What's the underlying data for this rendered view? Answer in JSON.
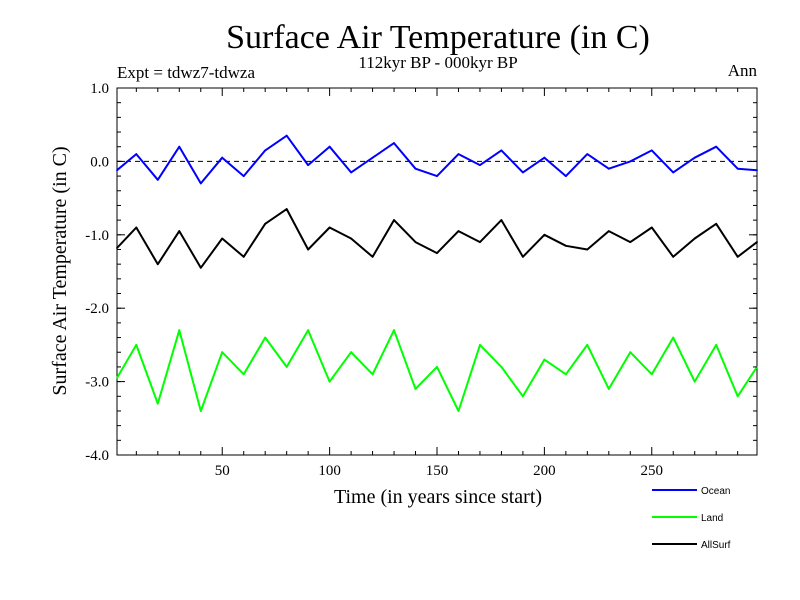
{
  "chart_data": {
    "type": "line",
    "title": "Surface Air Temperature (in C)",
    "subtitle": "112kyr BP - 000kyr BP",
    "annotation_left": "Expt = tdwz7-tdwza",
    "annotation_right": "Ann",
    "xlabel": "Time (in years since start)",
    "ylabel": "Surface Air Temperature (in C)",
    "xlim": [
      1,
      299
    ],
    "ylim": [
      -4.0,
      1.0
    ],
    "x_ticks": [
      50,
      100,
      150,
      200,
      250
    ],
    "x_tick_labels": [
      "50",
      "100",
      "150",
      "200",
      "250"
    ],
    "y_ticks": [
      1.0,
      0.0,
      -1.0,
      -2.0,
      -3.0,
      -4.0
    ],
    "y_tick_labels": [
      "1.0",
      "0.0",
      "-1.0",
      "-2.0",
      "-3.0",
      "-4.0"
    ],
    "reference_line": 0.0,
    "legend_position": "bottom-right outside",
    "x": [
      1,
      10,
      20,
      30,
      40,
      50,
      60,
      70,
      80,
      90,
      100,
      110,
      120,
      130,
      140,
      150,
      160,
      170,
      180,
      190,
      200,
      210,
      220,
      230,
      240,
      250,
      260,
      270,
      280,
      290,
      299
    ],
    "series": [
      {
        "name": "Ocean",
        "color": "#0000ff",
        "values": [
          -0.12,
          0.1,
          -0.25,
          0.2,
          -0.3,
          0.05,
          -0.2,
          0.15,
          0.35,
          -0.05,
          0.2,
          -0.15,
          0.05,
          0.25,
          -0.1,
          -0.2,
          0.1,
          -0.05,
          0.15,
          -0.15,
          0.05,
          -0.2,
          0.1,
          -0.1,
          0.0,
          0.15,
          -0.15,
          0.05,
          0.2,
          -0.1,
          -0.12
        ]
      },
      {
        "name": "Land",
        "color": "#00ff00",
        "values": [
          -2.95,
          -2.5,
          -3.3,
          -2.3,
          -3.4,
          -2.6,
          -2.9,
          -2.4,
          -2.8,
          -2.3,
          -3.0,
          -2.6,
          -2.9,
          -2.3,
          -3.1,
          -2.8,
          -3.4,
          -2.5,
          -2.8,
          -3.2,
          -2.7,
          -2.9,
          -2.5,
          -3.1,
          -2.6,
          -2.9,
          -2.4,
          -3.0,
          -2.5,
          -3.2,
          -2.8
        ]
      },
      {
        "name": "AllSurf",
        "color": "#000000",
        "values": [
          -1.18,
          -0.9,
          -1.4,
          -0.95,
          -1.45,
          -1.05,
          -1.3,
          -0.85,
          -0.65,
          -1.2,
          -0.9,
          -1.05,
          -1.3,
          -0.8,
          -1.1,
          -1.25,
          -0.95,
          -1.1,
          -0.8,
          -1.3,
          -1.0,
          -1.15,
          -1.2,
          -0.95,
          -1.1,
          -0.9,
          -1.3,
          -1.05,
          -0.85,
          -1.3,
          -1.1
        ]
      }
    ]
  }
}
